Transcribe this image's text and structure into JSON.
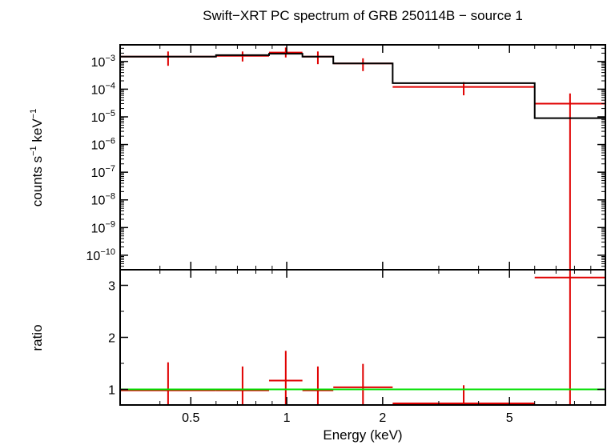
{
  "chart_data": {
    "type": "line",
    "title": "Swift−XRT PC spectrum of GRB 250114B − source 1",
    "xlabel": "Energy (keV)",
    "xscale": "log",
    "xlim": [
      0.3,
      10
    ],
    "x_ticks": [
      {
        "value": 0.5,
        "label": "0.5"
      },
      {
        "value": 1,
        "label": "1"
      },
      {
        "value": 2,
        "label": "2"
      },
      {
        "value": 5,
        "label": "5"
      }
    ],
    "panels": [
      {
        "name": "spectrum",
        "ylabel": {
          "prefix": "counts s",
          "exp1": "−1",
          "mid": " keV",
          "exp2": "−1"
        },
        "yscale": "log",
        "ylim": [
          3e-11,
          0.004
        ],
        "y_ticks": [
          {
            "value": 0.001,
            "base": "10",
            "exp": "−3"
          },
          {
            "value": 0.0001,
            "base": "10",
            "exp": "−4"
          },
          {
            "value": 1e-05,
            "base": "10",
            "exp": "−5"
          },
          {
            "value": 1e-06,
            "base": "10",
            "exp": "−6"
          },
          {
            "value": 1e-07,
            "base": "10",
            "exp": "−7"
          },
          {
            "value": 1e-08,
            "base": "10",
            "exp": "−8"
          },
          {
            "value": 1e-09,
            "base": "10",
            "exp": "−9"
          },
          {
            "value": 1e-10,
            "base": "10",
            "exp": "−10"
          }
        ],
        "series": [
          {
            "kind": "data-crosses",
            "color": "#e00000",
            "points": [
              {
                "x_lo": 0.3,
                "x_hi": 0.6,
                "y": 0.0015,
                "y_lo": 0.0007,
                "y_hi": 0.0023
              },
              {
                "x_lo": 0.6,
                "x_hi": 0.88,
                "y": 0.0016,
                "y_lo": 0.001,
                "y_hi": 0.0023
              },
              {
                "x_lo": 0.88,
                "x_hi": 1.12,
                "y": 0.0021,
                "y_lo": 0.0014,
                "y_hi": 0.0032
              },
              {
                "x_lo": 1.12,
                "x_hi": 1.4,
                "y": 0.0015,
                "y_lo": 0.0008,
                "y_hi": 0.0023
              },
              {
                "x_lo": 1.4,
                "x_hi": 2.15,
                "y": 0.00085,
                "y_lo": 0.00045,
                "y_hi": 0.0013
              },
              {
                "x_lo": 2.15,
                "x_hi": 6.0,
                "y": 0.00012,
                "y_lo": 6e-05,
                "y_hi": 0.00018
              },
              {
                "x_lo": 6.0,
                "x_hi": 10.0,
                "y": 3e-05,
                "y_lo": 3e-11,
                "y_hi": 7e-05
              }
            ]
          },
          {
            "kind": "model-step",
            "color": "#000000",
            "steps": [
              {
                "x_lo": 0.3,
                "x_hi": 0.6,
                "y": 0.0015
              },
              {
                "x_lo": 0.6,
                "x_hi": 0.88,
                "y": 0.0017
              },
              {
                "x_lo": 0.88,
                "x_hi": 1.12,
                "y": 0.0019
              },
              {
                "x_lo": 1.12,
                "x_hi": 1.4,
                "y": 0.0015
              },
              {
                "x_lo": 1.4,
                "x_hi": 2.15,
                "y": 0.00085
              },
              {
                "x_lo": 2.15,
                "x_hi": 6.0,
                "y": 0.000165
              },
              {
                "x_lo": 6.0,
                "x_hi": 10.0,
                "y": 9e-06
              }
            ]
          }
        ]
      },
      {
        "name": "ratio",
        "ylabel": "ratio",
        "yscale": "linear",
        "ylim": [
          0.7,
          3.3
        ],
        "y_ticks": [
          {
            "value": 1,
            "label": "1"
          },
          {
            "value": 2,
            "label": "2"
          },
          {
            "value": 3,
            "label": "3"
          }
        ],
        "series": [
          {
            "kind": "data-crosses",
            "color": "#e00000",
            "points": [
              {
                "x_lo": 0.3,
                "x_hi": 0.6,
                "y": 0.98,
                "y_lo": 0.7,
                "y_hi": 1.52
              },
              {
                "x_lo": 0.6,
                "x_hi": 0.88,
                "y": 0.98,
                "y_lo": 0.7,
                "y_hi": 1.44
              },
              {
                "x_lo": 0.88,
                "x_hi": 1.12,
                "y": 1.17,
                "y_lo": 0.7,
                "y_hi": 1.74
              },
              {
                "x_lo": 1.12,
                "x_hi": 1.4,
                "y": 0.98,
                "y_lo": 0.7,
                "y_hi": 1.44
              },
              {
                "x_lo": 1.4,
                "x_hi": 2.15,
                "y": 1.04,
                "y_lo": 0.7,
                "y_hi": 1.49
              },
              {
                "x_lo": 2.15,
                "x_hi": 6.0,
                "y": 0.73,
                "y_lo": 0.7,
                "y_hi": 1.08
              },
              {
                "x_lo": 6.0,
                "x_hi": 10.0,
                "y": 3.15,
                "y_lo": 0.7,
                "y_hi": 3.3
              }
            ]
          },
          {
            "kind": "reference-line",
            "color": "#00e000",
            "y": 1.0
          }
        ]
      }
    ]
  }
}
